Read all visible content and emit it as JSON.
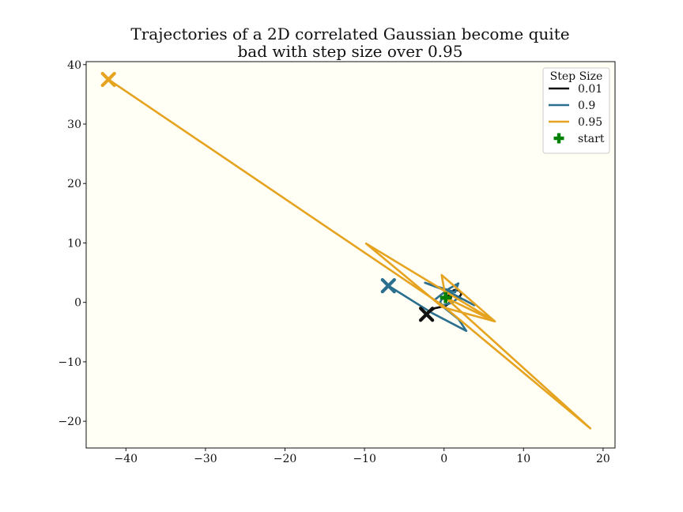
{
  "chart_data": {
    "type": "line",
    "title": [
      "Trajectories of a 2D correlated Gaussian become quite",
      "bad with step size over 0.95"
    ],
    "xlim": [
      -45,
      21.5
    ],
    "ylim": [
      -24.5,
      40.5
    ],
    "xticks": [
      -40,
      -30,
      -20,
      -10,
      0,
      10,
      20
    ],
    "yticks": [
      -20,
      -10,
      0,
      10,
      20,
      30,
      40
    ],
    "xtick_labels": [
      "−40",
      "−30",
      "−20",
      "−10",
      "0",
      "10",
      "20"
    ],
    "ytick_labels": [
      "−20",
      "−10",
      "0",
      "10",
      "20",
      "30",
      "40"
    ],
    "grid": false,
    "plot_background": "#fffff5",
    "legend": {
      "title": "Step Size",
      "placement": "top-right",
      "entries": [
        "0.01",
        "0.9",
        "0.95",
        "start"
      ]
    },
    "start": {
      "label": "start",
      "x": 0.2,
      "y": 0.8,
      "color": "#008000"
    },
    "series": [
      {
        "name": "0.01",
        "color": "#111111",
        "points": [
          [
            0.2,
            0.8
          ],
          [
            0.6,
            1.2
          ],
          [
            0.9,
            1.8
          ],
          [
            1.3,
            2.1
          ],
          [
            1.9,
            2.0
          ],
          [
            2.2,
            1.5
          ],
          [
            2.0,
            1.0
          ],
          [
            1.5,
            0.9
          ],
          [
            1.0,
            1.3
          ],
          [
            0.8,
            1.4
          ],
          [
            0.9,
            1.0
          ],
          [
            0.8,
            0.4
          ],
          [
            0.6,
            -0.2
          ],
          [
            0.2,
            -0.6
          ],
          [
            -0.5,
            -0.8
          ],
          [
            -1.2,
            -1.0
          ],
          [
            -2.2,
            -2.0
          ]
        ],
        "end": [
          -2.2,
          -2.0
        ]
      },
      {
        "name": "0.9",
        "color": "#2b6f8e",
        "points": [
          [
            0.2,
            0.8
          ],
          [
            -0.3,
            0.5
          ],
          [
            -0.5,
            0.0
          ],
          [
            -0.2,
            -0.5
          ],
          [
            1.0,
            -0.1
          ],
          [
            1.8,
            0.8
          ],
          [
            2.6,
            0.4
          ],
          [
            3.8,
            -0.5
          ],
          [
            0.6,
            1.8
          ],
          [
            -2.4,
            3.3
          ],
          [
            1.4,
            1.7
          ],
          [
            1.8,
            3.2
          ],
          [
            0.5,
            2.2
          ],
          [
            -1.2,
            0.4
          ],
          [
            1.8,
            -2.8
          ],
          [
            2.8,
            -4.8
          ],
          [
            -1.5,
            -1.8
          ],
          [
            -7.0,
            2.8
          ]
        ],
        "end": [
          -7.0,
          2.8
        ]
      },
      {
        "name": "0.95",
        "color": "#e6a320",
        "points": [
          [
            0.2,
            0.8
          ],
          [
            -0.3,
            4.6
          ],
          [
            6.4,
            -3.2
          ],
          [
            -9.8,
            9.9
          ],
          [
            -0.2,
            -0.8
          ],
          [
            6.4,
            -3.2
          ],
          [
            0.2,
            0.8
          ],
          [
            18.4,
            -21.2
          ],
          [
            -0.2,
            -0.5
          ],
          [
            -42.2,
            37.5
          ]
        ],
        "end": [
          -42.2,
          37.5
        ]
      }
    ]
  }
}
